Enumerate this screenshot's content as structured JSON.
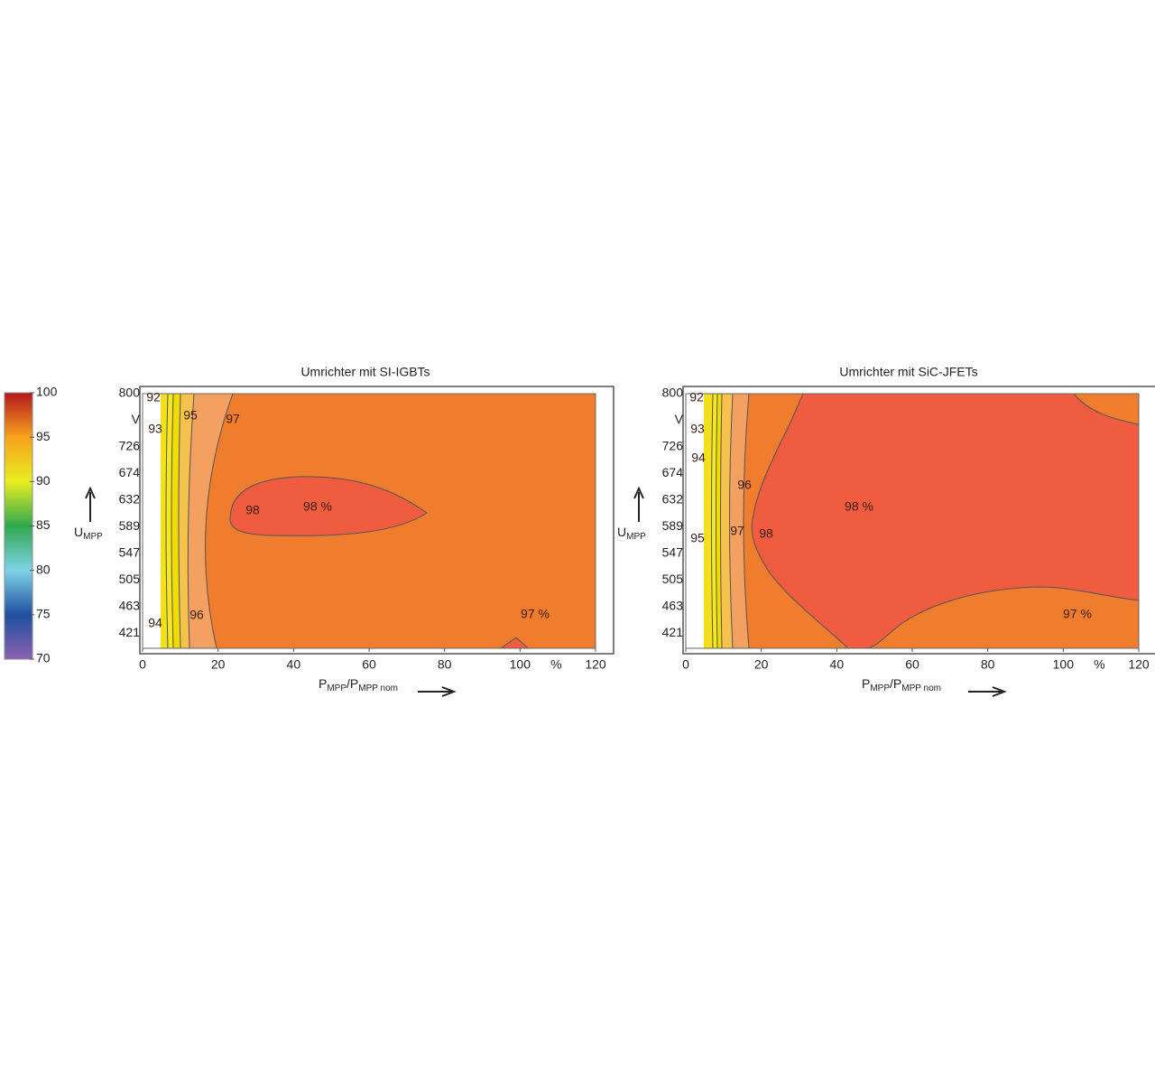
{
  "colorbar": {
    "lim": [
      70,
      100
    ],
    "ticks": [
      100,
      95,
      90,
      85,
      80,
      75,
      70
    ],
    "colors": [
      "#b3161e",
      "#f6a21e",
      "#e8ee20",
      "#2fa84f",
      "#7fd3e6",
      "#1f4fa0",
      "#8a62b0"
    ]
  },
  "chart_data": [
    {
      "type": "contour",
      "title": "Umrichter mit SI-IGBTs",
      "xlim": [
        0,
        120
      ],
      "xticks": [
        0,
        20,
        40,
        60,
        80,
        100,
        120
      ],
      "x_unit": "%",
      "xlabel": [
        "P",
        "MPP",
        "/P",
        "MPP nom"
      ],
      "ylabel": [
        "U",
        "MPP"
      ],
      "y_categories": [
        "800",
        "V",
        "726",
        "674",
        "632",
        "589",
        "547",
        "505",
        "463",
        "421"
      ],
      "levels": [
        92,
        93,
        94,
        95,
        96,
        97,
        98
      ],
      "level_colors": [
        "#f2e01a",
        "#f6e820",
        "#efdc00",
        "#f5c24e",
        "#f4a060",
        "#f07d2e",
        "#ef5c3f"
      ],
      "annotations": [
        "92",
        "93",
        "95",
        "97",
        "94",
        "96",
        "98",
        "98 %",
        "97 %"
      ]
    },
    {
      "type": "contour",
      "title": "Umrichter mit SiC-JFETs",
      "xlim": [
        0,
        120
      ],
      "xticks": [
        0,
        20,
        40,
        60,
        80,
        100,
        120
      ],
      "x_unit": "%",
      "xlabel": [
        "P",
        "MPP",
        "/P",
        "MPP nom"
      ],
      "ylabel": [
        "U",
        "MPP"
      ],
      "y_categories": [
        "800",
        "V",
        "726",
        "674",
        "632",
        "589",
        "547",
        "505",
        "463",
        "421"
      ],
      "levels": [
        92,
        93,
        94,
        95,
        96,
        97,
        98
      ],
      "level_colors": [
        "#f2e01a",
        "#f6e820",
        "#efdc00",
        "#f5c24e",
        "#f4a060",
        "#f07d2e",
        "#ef5c3f"
      ],
      "annotations": [
        "92",
        "93",
        "94",
        "96",
        "95",
        "97",
        "98",
        "98 %",
        "97 %"
      ]
    }
  ]
}
